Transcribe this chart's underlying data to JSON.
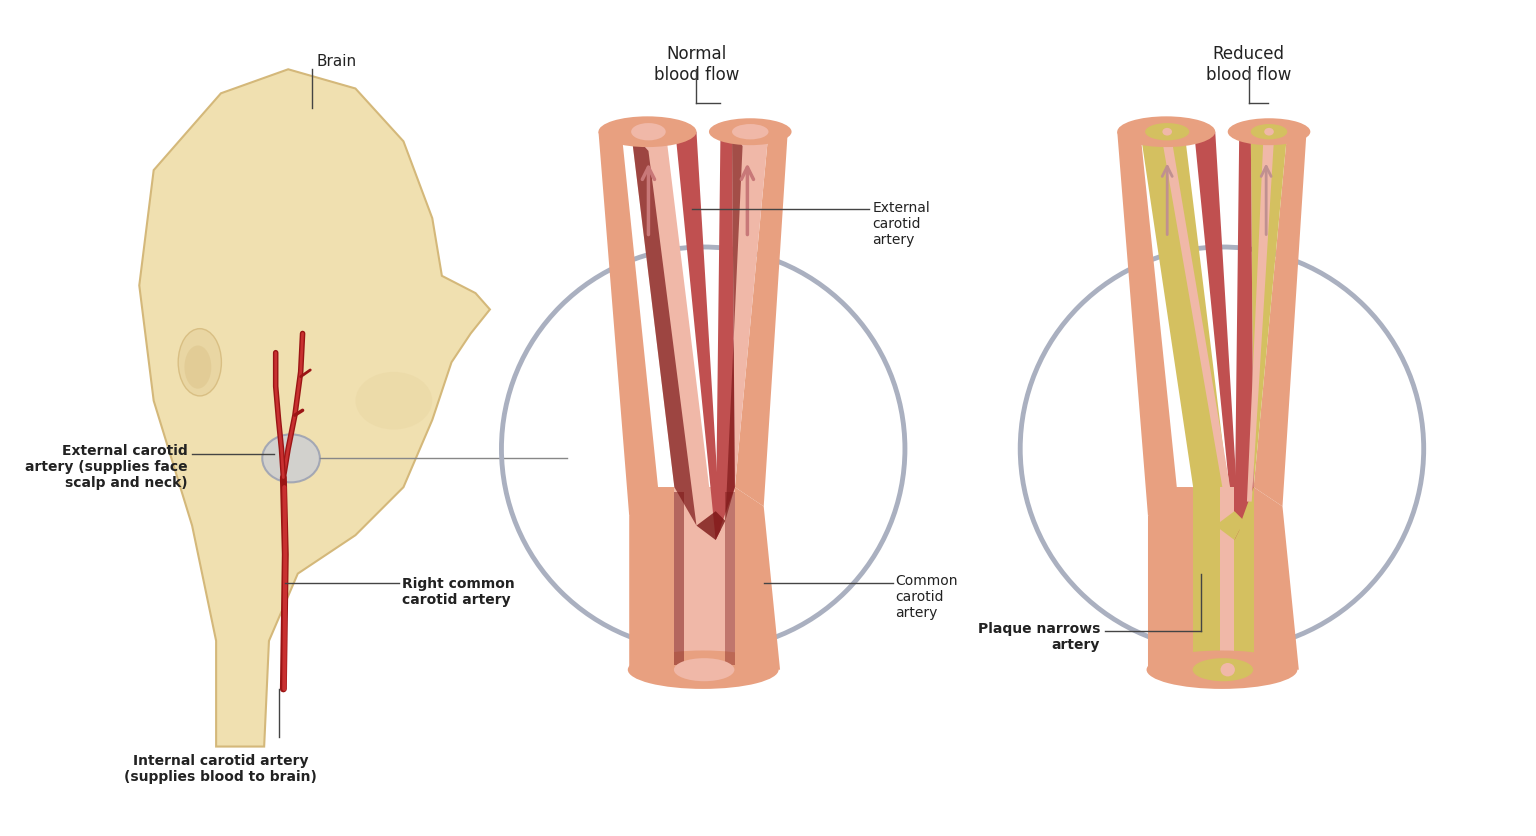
{
  "bg_color": "#ffffff",
  "fig_width": 15.36,
  "fig_height": 8.36,
  "labels": {
    "brain": "Brain",
    "external_carotid_left": "External carotid\nartery (supplies face\nscalp and neck)",
    "internal_carotid": "Internal carotid artery\n(supplies blood to brain)",
    "right_common": "Right common\ncarotid artery",
    "normal_blood_flow": "Normal\nblood flow",
    "reduced_blood_flow": "Reduced\nblood flow",
    "external_carotid_right": "External\ncarotid\nartery",
    "common_carotid": "Common\ncarotid\nartery",
    "plaque_narrows": "Plaque narrows\nartery"
  },
  "colors": {
    "skin": "#f0e0b0",
    "skin_mid": "#e8d4a0",
    "skin_dark": "#d4b87a",
    "artery_outer": "#c05050",
    "artery_wall": "#d4706a",
    "artery_inner_dark": "#8b2020",
    "artery_lumen": "#e8a090",
    "artery_pink": "#f0c0b0",
    "plaque": "#d4c06a",
    "plaque_light": "#e8d898",
    "plaque_dark": "#b09040",
    "arrow_color": "#c87878",
    "circle_color": "#aab0c0",
    "text_color": "#222222",
    "carotid_red": "#9b1515",
    "carotid_bright": "#c83030"
  }
}
